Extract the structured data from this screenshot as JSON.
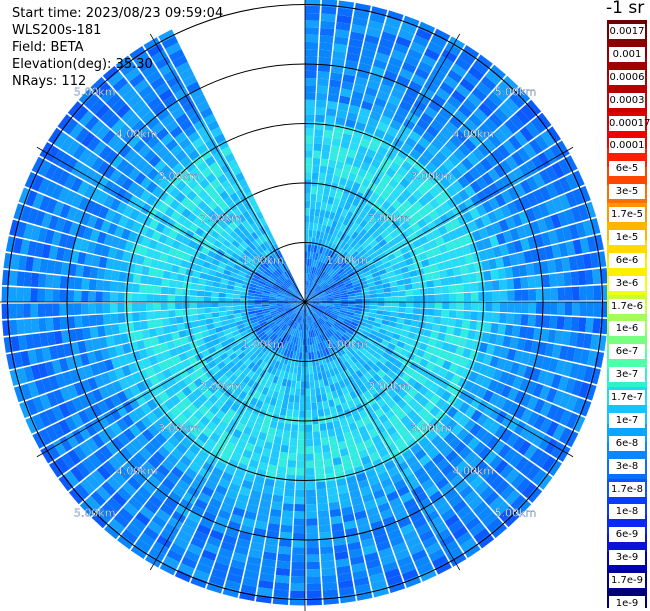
{
  "info": {
    "start_time": "Start time: 2023/08/23 09:59:04",
    "system": "WLS200s-181",
    "field": "Field: BETA",
    "elevation": "Elevation(deg): 35.30",
    "nrays": "NRays: 112"
  },
  "colorbar": {
    "unit": "-1 sr",
    "labels": [
      "0.0017",
      "0.001",
      "0.0006",
      "0.0003",
      "0.00017",
      "0.0001",
      "6e-5",
      "3e-5",
      "1.7e-5",
      "1e-5",
      "6e-6",
      "3e-6",
      "1.7e-6",
      "1e-6",
      "6e-7",
      "3e-7",
      "1.7e-7",
      "1e-7",
      "6e-8",
      "3e-8",
      "1.7e-8",
      "1e-8",
      "6e-9",
      "3e-9",
      "1.7e-9",
      "1e-9"
    ],
    "colors": [
      "#6e0000",
      "#8c0000",
      "#a00000",
      "#b40000",
      "#c80000",
      "#dc0000",
      "#f00000",
      "#ff1e00",
      "#ff4600",
      "#ff6e00",
      "#ff9600",
      "#ffb400",
      "#ffdc00",
      "#fff000",
      "#f0ff0a",
      "#c8ff32",
      "#a0ff5a",
      "#78ff82",
      "#50ffaa",
      "#32f0cd",
      "#1edcf0",
      "#14c3ff",
      "#0aa5ff",
      "#0a87ff",
      "#0a6eff",
      "#0a55ff",
      "#0a3cff",
      "#0a28f0",
      "#0a14d2",
      "#0000b4",
      "#000096",
      "#000078"
    ]
  },
  "chart_data": {
    "type": "heatmap",
    "projection": "polar PPI scan",
    "field": "BETA",
    "elevation_deg": 35.3,
    "n_rays": 112,
    "range_ring_labels": [
      "1.00km",
      "2.00km",
      "3.00km",
      "4.00km",
      "5.00km"
    ],
    "range_rings_km": [
      1,
      2,
      3,
      4,
      5
    ],
    "max_range_km": 5.1,
    "missing_sector_deg": [
      -28,
      0
    ],
    "grid": true
  }
}
